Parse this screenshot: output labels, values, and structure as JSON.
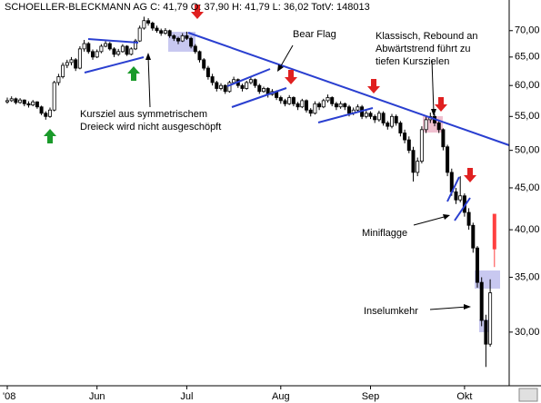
{
  "chart_data": {
    "type": "candlestick",
    "title": "SCHOELLER-BLECKMANN AG C: 41,79 O: 37,90 H: 41,79 L: 36,02 TotV: 148013",
    "categories": [
      "'08",
      null,
      null,
      null,
      null,
      null,
      null,
      null,
      null,
      null,
      null,
      null,
      null,
      null,
      null,
      null,
      null,
      null,
      null,
      null,
      null,
      "Jun",
      null,
      null,
      null,
      null,
      null,
      null,
      null,
      null,
      null,
      null,
      null,
      null,
      null,
      null,
      null,
      null,
      null,
      null,
      null,
      null,
      "Jul",
      null,
      null,
      null,
      null,
      null,
      null,
      null,
      null,
      null,
      null,
      null,
      null,
      null,
      null,
      null,
      null,
      null,
      null,
      null,
      null,
      null,
      "Aug",
      null,
      null,
      null,
      null,
      null,
      null,
      null,
      null,
      null,
      null,
      null,
      null,
      null,
      null,
      null,
      null,
      null,
      null,
      null,
      null,
      "Sep",
      null,
      null,
      null,
      null,
      null,
      null,
      null,
      null,
      null,
      null,
      null,
      null,
      null,
      null,
      null,
      null,
      null,
      null,
      null,
      null,
      null,
      "Okt",
      null,
      null,
      null,
      null,
      null,
      null,
      null
    ],
    "ohlc": [
      [
        57.3,
        58.0,
        57.0,
        57.5
      ],
      [
        57.5,
        58.2,
        57.3,
        57.8
      ],
      [
        57.8,
        58.0,
        56.9,
        57.2
      ],
      [
        57.2,
        57.9,
        57.0,
        57.6
      ],
      [
        57.6,
        57.7,
        56.6,
        57.0
      ],
      [
        57.0,
        57.4,
        56.4,
        56.8
      ],
      [
        56.8,
        57.6,
        56.6,
        57.3
      ],
      [
        57.3,
        57.4,
        56.2,
        56.5
      ],
      [
        56.5,
        56.7,
        55.2,
        55.5
      ],
      [
        55.5,
        55.8,
        54.5,
        55.0
      ],
      [
        55.0,
        56.4,
        54.8,
        56.0
      ],
      [
        56.0,
        60.8,
        55.8,
        60.5
      ],
      [
        60.5,
        62.0,
        60.0,
        61.5
      ],
      [
        61.5,
        64.0,
        61.2,
        63.5
      ],
      [
        63.5,
        64.5,
        63.0,
        64.0
      ],
      [
        64.0,
        65.0,
        63.5,
        64.5
      ],
      [
        64.5,
        64.8,
        62.5,
        63.0
      ],
      [
        63.0,
        67.0,
        62.8,
        66.5
      ],
      [
        66.5,
        68.2,
        66.0,
        67.5
      ],
      [
        67.5,
        67.8,
        65.6,
        66.0
      ],
      [
        66.0,
        66.4,
        64.5,
        65.0
      ],
      [
        65.0,
        66.4,
        64.8,
        66.0
      ],
      [
        66.0,
        67.4,
        65.7,
        67.0
      ],
      [
        67.0,
        68.0,
        66.8,
        67.5
      ],
      [
        67.5,
        67.8,
        66.2,
        66.5
      ],
      [
        66.5,
        66.8,
        65.0,
        65.5
      ],
      [
        65.5,
        66.5,
        65.2,
        66.0
      ],
      [
        66.0,
        67.4,
        65.8,
        67.0
      ],
      [
        67.0,
        67.2,
        65.2,
        65.5
      ],
      [
        65.5,
        66.8,
        65.3,
        66.5
      ],
      [
        66.5,
        68.4,
        66.3,
        68.0
      ],
      [
        68.0,
        71.0,
        67.8,
        70.5
      ],
      [
        70.5,
        72.8,
        70.2,
        72.0
      ],
      [
        72.0,
        72.5,
        71.0,
        71.5
      ],
      [
        71.5,
        71.8,
        70.0,
        70.5
      ],
      [
        70.5,
        71.0,
        69.6,
        70.0
      ],
      [
        70.0,
        70.4,
        69.0,
        69.5
      ],
      [
        69.5,
        70.5,
        69.2,
        70.0
      ],
      [
        70.0,
        70.2,
        68.6,
        69.0
      ],
      [
        69.0,
        69.3,
        68.0,
        68.5
      ],
      [
        68.5,
        68.8,
        67.4,
        68.0
      ],
      [
        68.0,
        69.5,
        67.8,
        69.0
      ],
      [
        69.0,
        69.8,
        68.2,
        68.5
      ],
      [
        68.5,
        68.8,
        66.6,
        67.0
      ],
      [
        67.0,
        67.4,
        65.6,
        66.0
      ],
      [
        66.0,
        66.2,
        64.0,
        64.5
      ],
      [
        64.5,
        64.8,
        62.6,
        63.0
      ],
      [
        63.0,
        63.4,
        61.0,
        61.5
      ],
      [
        61.5,
        62.0,
        60.0,
        60.5
      ],
      [
        60.5,
        60.8,
        59.0,
        59.5
      ],
      [
        59.5,
        60.4,
        59.2,
        60.0
      ],
      [
        60.0,
        60.2,
        58.6,
        59.0
      ],
      [
        59.0,
        60.8,
        58.8,
        60.5
      ],
      [
        60.5,
        61.5,
        60.2,
        61.0
      ],
      [
        61.0,
        61.2,
        59.6,
        60.0
      ],
      [
        60.0,
        60.3,
        59.0,
        59.5
      ],
      [
        59.5,
        60.8,
        59.3,
        60.5
      ],
      [
        60.5,
        61.4,
        60.2,
        61.0
      ],
      [
        61.0,
        61.2,
        59.6,
        60.0
      ],
      [
        60.0,
        60.3,
        58.6,
        59.0
      ],
      [
        59.0,
        59.8,
        58.8,
        59.5
      ],
      [
        59.5,
        59.7,
        58.0,
        58.5
      ],
      [
        58.5,
        59.4,
        58.3,
        59.0
      ],
      [
        59.0,
        59.2,
        57.6,
        58.0
      ],
      [
        58.0,
        58.3,
        57.0,
        57.5
      ],
      [
        57.5,
        57.8,
        56.6,
        57.0
      ],
      [
        57.0,
        58.4,
        56.8,
        58.0
      ],
      [
        58.0,
        58.2,
        56.6,
        57.0
      ],
      [
        57.0,
        57.3,
        56.0,
        56.5
      ],
      [
        56.5,
        57.8,
        56.3,
        57.5
      ],
      [
        57.5,
        57.7,
        55.6,
        56.0
      ],
      [
        56.0,
        56.3,
        55.0,
        55.5
      ],
      [
        55.5,
        57.4,
        55.3,
        57.0
      ],
      [
        57.0,
        57.3,
        56.0,
        56.5
      ],
      [
        56.5,
        57.8,
        56.3,
        57.5
      ],
      [
        57.5,
        58.5,
        57.2,
        58.0
      ],
      [
        58.0,
        58.2,
        56.6,
        57.0
      ],
      [
        57.0,
        57.3,
        56.0,
        56.5
      ],
      [
        56.5,
        57.4,
        56.2,
        57.0
      ],
      [
        57.0,
        57.2,
        56.0,
        56.5
      ],
      [
        56.5,
        56.8,
        55.0,
        55.5
      ],
      [
        55.5,
        56.4,
        55.2,
        56.0
      ],
      [
        56.0,
        56.9,
        55.8,
        56.5
      ],
      [
        56.5,
        56.8,
        54.6,
        55.0
      ],
      [
        55.0,
        55.9,
        54.7,
        55.5
      ],
      [
        55.5,
        55.8,
        54.6,
        55.0
      ],
      [
        55.0,
        55.3,
        54.0,
        54.5
      ],
      [
        54.5,
        55.9,
        54.2,
        55.5
      ],
      [
        55.5,
        55.8,
        53.6,
        54.0
      ],
      [
        54.0,
        54.3,
        53.0,
        53.5
      ],
      [
        53.5,
        55.4,
        53.2,
        55.0
      ],
      [
        55.0,
        55.3,
        53.6,
        54.0
      ],
      [
        54.0,
        54.3,
        52.0,
        52.5
      ],
      [
        52.5,
        53.0,
        51.0,
        51.5
      ],
      [
        51.5,
        52.0,
        49.6,
        50.0
      ],
      [
        50.0,
        50.5,
        45.8,
        47.0
      ],
      [
        47.0,
        49.0,
        46.5,
        48.5
      ],
      [
        48.5,
        53.5,
        48.2,
        53.0
      ],
      [
        53.0,
        55.0,
        52.5,
        54.5
      ],
      [
        54.5,
        55.6,
        54.0,
        55.0
      ],
      [
        55.0,
        55.4,
        53.5,
        54.0
      ],
      [
        54.0,
        54.5,
        52.5,
        53.0
      ],
      [
        53.0,
        53.2,
        50.0,
        50.5
      ],
      [
        50.5,
        50.8,
        46.5,
        47.0
      ],
      [
        47.0,
        47.5,
        44.0,
        44.5
      ],
      [
        44.5,
        45.0,
        43.0,
        43.5
      ],
      [
        43.5,
        46.5,
        43.2,
        44.0
      ],
      [
        44.0,
        44.3,
        41.5,
        42.0
      ],
      [
        42.0,
        42.5,
        40.0,
        40.5
      ],
      [
        40.5,
        40.8,
        37.5,
        38.0
      ],
      [
        38.0,
        38.2,
        34.0,
        34.5
      ],
      [
        34.5,
        35.0,
        30.5,
        31.0
      ],
      [
        31.0,
        31.5,
        27.2,
        29.0
      ],
      [
        29.0,
        34.8,
        28.8,
        33.5
      ],
      [
        37.9,
        41.79,
        36.02,
        41.79
      ]
    ],
    "colors": {
      "up": "#ffffff",
      "down": "#000000",
      "last": "#ff4040"
    },
    "ylim": [
      25.8,
      76.3
    ],
    "log": true,
    "yticks": [
      {
        "value": 30,
        "label": "30,00"
      },
      {
        "value": 35,
        "label": "35,00"
      },
      {
        "value": 40,
        "label": "40,00"
      },
      {
        "value": 45,
        "label": "45,00"
      },
      {
        "value": 50,
        "label": "50,00"
      },
      {
        "value": 55,
        "label": "55,00"
      },
      {
        "value": 60,
        "label": "60,00"
      },
      {
        "value": 65,
        "label": "65,00"
      },
      {
        "value": 70,
        "label": "70,00"
      }
    ],
    "annotations": [
      [
        "Kursziel aus symmetrischem",
        "Dreieck wird nicht ausgeschöpft"
      ],
      [
        "Bear Flag"
      ],
      [
        "Klassisch, Rebound an",
        "Abwärtstrend führt zu",
        "tiefen Kurszielen"
      ],
      [
        "Miniflagge"
      ],
      [
        "Inselumkehr"
      ]
    ]
  }
}
